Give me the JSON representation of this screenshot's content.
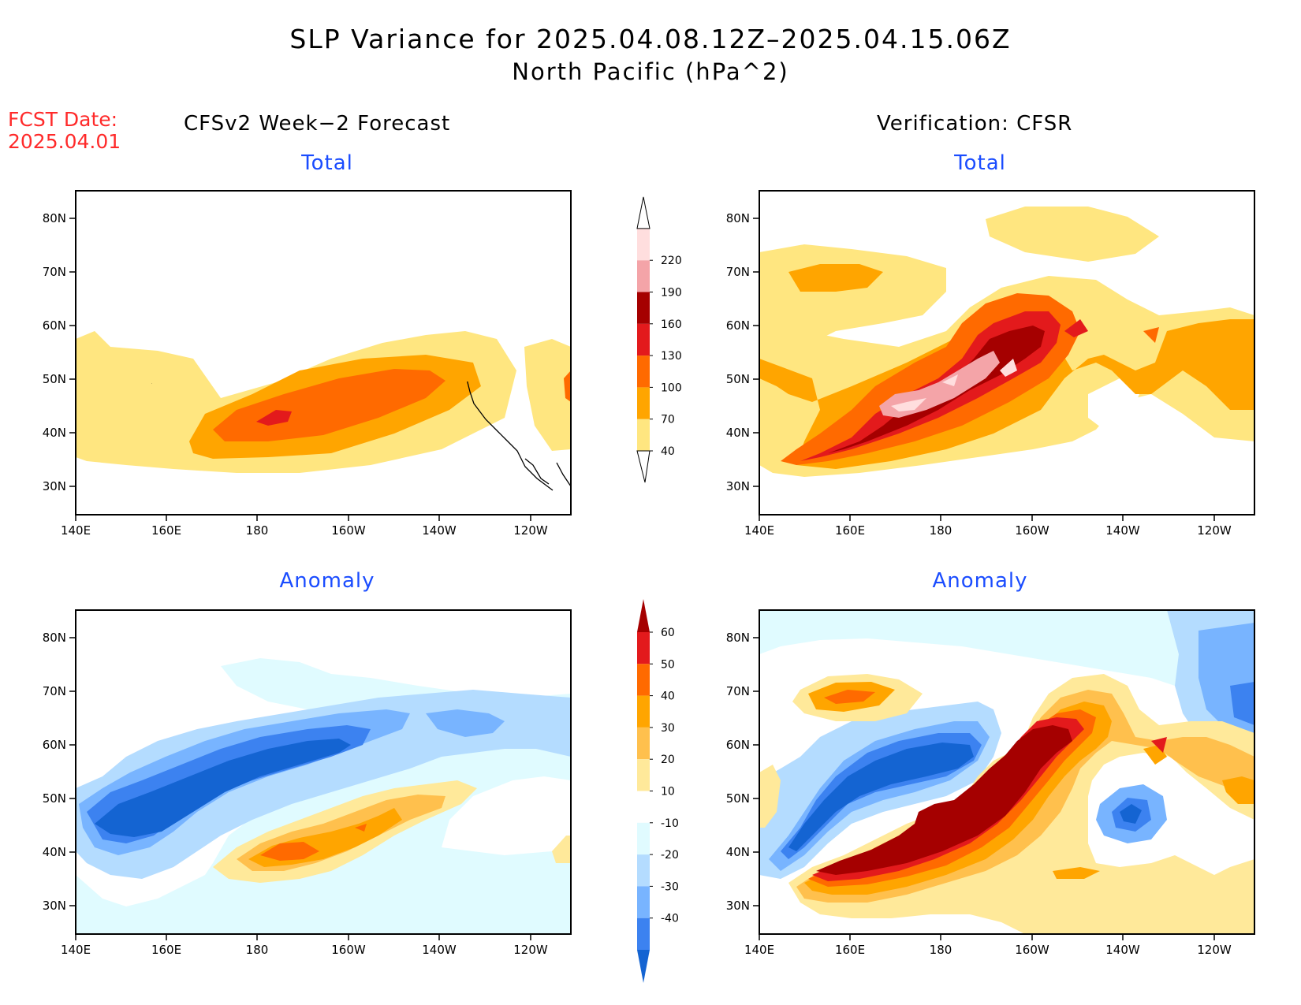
{
  "title": "SLP Variance for 2025.04.08.12Z–2025.04.15.06Z",
  "subtitle": "North Pacific (hPa^2)",
  "fcst_date": {
    "line1": "FCST Date:",
    "line2": "2025.04.01"
  },
  "left_column": "CFSv2 Week−2 Forecast",
  "right_column": "Verification: CFSR",
  "panel_titles": {
    "total": "Total",
    "anomaly": "Anomaly"
  },
  "axis_ticks": {
    "lat": [
      "80N",
      "70N",
      "60N",
      "50N",
      "40N",
      "30N"
    ],
    "lon": [
      "140E",
      "160E",
      "180",
      "160W",
      "140W",
      "120W"
    ]
  },
  "chart_data": {
    "type": "heatmap",
    "region": "North Pacific",
    "lon_range": [
      "140E",
      "110W"
    ],
    "lat_range": [
      "25N",
      "85N"
    ],
    "panels": [
      {
        "row": "Total",
        "column": "CFSv2 Week−2 Forecast",
        "max_shading": "130"
      },
      {
        "row": "Total",
        "column": "Verification: CFSR",
        "max_shading": "220"
      },
      {
        "row": "Anomaly",
        "column": "CFSv2 Week−2 Forecast",
        "min_shading": "-40",
        "max_shading": "40"
      },
      {
        "row": "Anomaly",
        "column": "Verification: CFSR",
        "min_shading": "-40",
        "max_shading": "60"
      }
    ],
    "colorbar_total": {
      "levels": [
        "40",
        "70",
        "100",
        "130",
        "160",
        "190",
        "220"
      ],
      "colors": [
        "#ffe680",
        "#ffa500",
        "#ff6a00",
        "#e31a1c",
        "#a50000",
        "#f4a4a8",
        "#ffdede"
      ]
    },
    "colorbar_anomaly": {
      "levels": [
        "60",
        "50",
        "40",
        "30",
        "20",
        "10",
        "-10",
        "-20",
        "-30",
        "-40"
      ],
      "colors": [
        "#a50000",
        "#e31a1c",
        "#ff6a00",
        "#ffa500",
        "#ffc04d",
        "#ffe99a",
        "#ffffff",
        "#e0fbff",
        "#b4dcff",
        "#78b4ff",
        "#3c82f0",
        "#1464d2"
      ]
    }
  },
  "colors": {
    "red_text": "#ff2a2a",
    "blue_title": "#1a4cff"
  }
}
